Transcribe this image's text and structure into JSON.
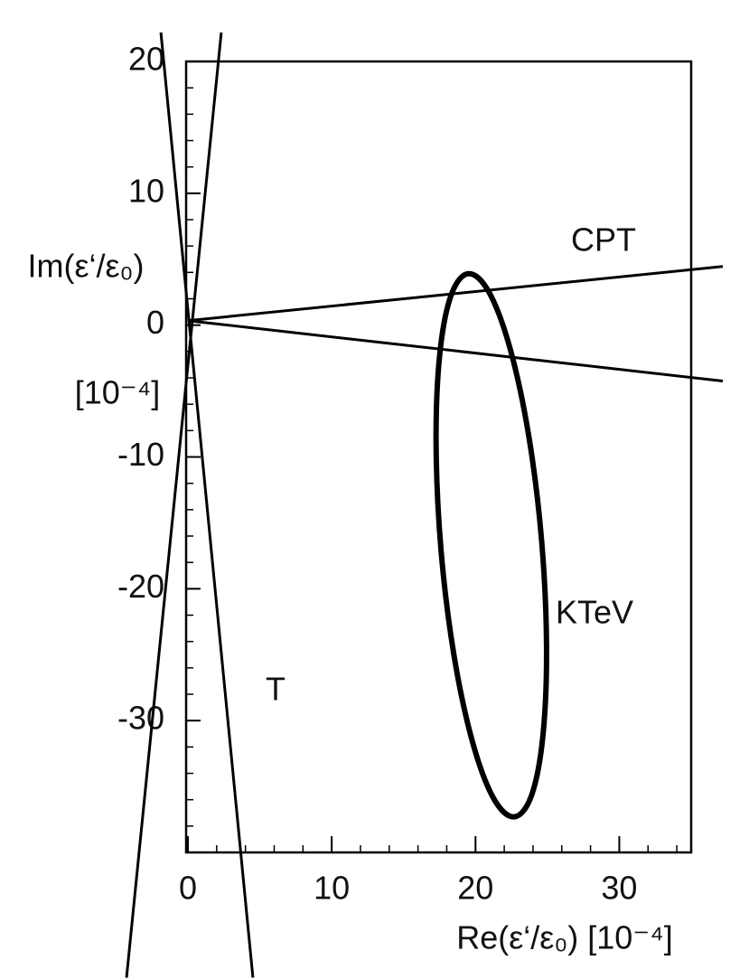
{
  "chart_data": {
    "type": "line",
    "xlabel": "Re(ε‘/ε₀) [10⁻⁴]",
    "ylabel": "Im(ε‘/ε₀)",
    "ylabel_unit": "[10⁻⁴]",
    "xlim": [
      0,
      35
    ],
    "ylim": [
      -40,
      20
    ],
    "xticks": [
      0,
      10,
      20,
      30
    ],
    "yticks": [
      -30,
      -20,
      -10,
      0,
      10,
      20
    ],
    "annotations": [
      "CPT",
      "KTeV",
      "T"
    ],
    "series": [
      {
        "color": "#000000",
        "x": [
          -4.27,
          2.32
        ],
        "y": [
          -49.5,
          22.2
        ]
      },
      {
        "color": "#000000",
        "x": [
          -1.88,
          4.52
        ],
        "y": [
          22.2,
          -49.5
        ]
      },
      {
        "color": "#000000",
        "x": [
          0,
          37.2
        ],
        "y": [
          0.34,
          4.45
        ]
      },
      {
        "color": "#000000",
        "x": [
          0,
          37.2
        ],
        "y": [
          0.34,
          -4.24
        ]
      },
      {
        "color": "#000000",
        "x": [
          22.7,
          23.92,
          24.7,
          24.94,
          24.6,
          23.72,
          22.44,
          20.96,
          19.5,
          18.28,
          17.5,
          17.26,
          17.6,
          18.48,
          19.76,
          21.24,
          22.7
        ],
        "y": [
          -37.3,
          -35.6,
          -31.03,
          -24.29,
          -16.37,
          -8.51,
          -1.91,
          2.46,
          3.9,
          2.2,
          -2.37,
          -9.11,
          -17.03,
          -24.89,
          -31.49,
          -35.86,
          -37.3
        ]
      }
    ]
  }
}
